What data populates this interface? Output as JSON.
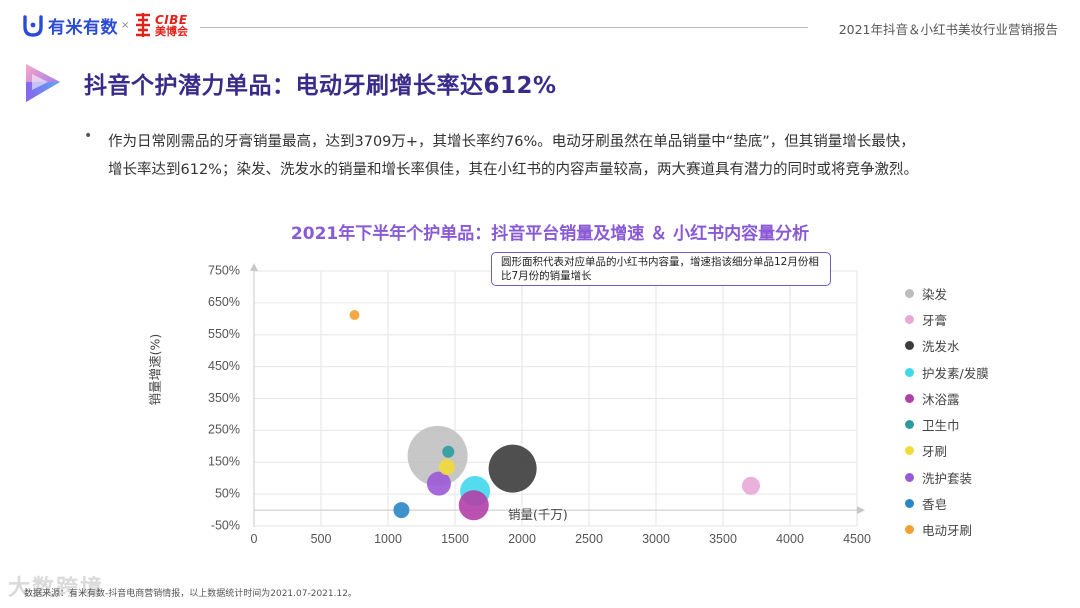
{
  "header": {
    "brand1": "有米有数",
    "separator": "×",
    "brand2_en": "CIBE",
    "brand2_cn": "美博会",
    "report_title": "2021年抖音＆小红书美妆行业营销报告"
  },
  "page": {
    "title": "抖音个护潜力单品：电动牙刷增长率达612%",
    "bullet": "•",
    "paragraph_line1": "作为日常刚需品的牙膏销量最高，达到3709万+，其增长率约76%。电动牙刷虽然在单品销量中“垫底”，但其销量增长最快，",
    "paragraph_line2": "增长率达到612%；染发、洗发水的销量和增长率俱佳，其在小红书的内容声量较高，两大赛道具有潜力的同时或将竞争激烈。"
  },
  "chart_data": {
    "type": "scatter",
    "title": "2021年下半年个护单品：抖音平台销量及增速 ＆ 小红书内容量分析",
    "xlabel": "销量(千万)",
    "ylabel": "销量增速(%)",
    "xlim": [
      0,
      4500
    ],
    "ylim": [
      -50,
      750
    ],
    "x_ticks": [
      0,
      500,
      1000,
      1500,
      2000,
      2500,
      3000,
      3500,
      4000,
      4500
    ],
    "y_ticks": [
      "-50%",
      "50%",
      "150%",
      "250%",
      "350%",
      "450%",
      "550%",
      "650%",
      "750%"
    ],
    "y_tick_values": [
      -50,
      50,
      150,
      250,
      350,
      450,
      550,
      650,
      750
    ],
    "annotation": "圆形面积代表对应单品的小红书内容量，增速指该细分单品12月份相比7月份的销量增长",
    "legend_position": "right",
    "series": [
      {
        "name": "染发",
        "color": "#bdbdbd",
        "x": 1370,
        "y": 170,
        "size": 30
      },
      {
        "name": "牙膏",
        "color": "#e7a8d8",
        "x": 3709,
        "y": 76,
        "size": 9
      },
      {
        "name": "洗发水",
        "color": "#3c3c3c",
        "x": 1930,
        "y": 130,
        "size": 24
      },
      {
        "name": "护发素/发膜",
        "color": "#43d7ec",
        "x": 1650,
        "y": 60,
        "size": 15
      },
      {
        "name": "沐浴露",
        "color": "#b13fa8",
        "x": 1640,
        "y": 15,
        "size": 15
      },
      {
        "name": "卫生巾",
        "color": "#2d9b9e",
        "x": 1450,
        "y": 183,
        "size": 6
      },
      {
        "name": "牙刷",
        "color": "#f1da3a",
        "x": 1440,
        "y": 135,
        "size": 8
      },
      {
        "name": "洗护套装",
        "color": "#9b59d6",
        "x": 1380,
        "y": 83,
        "size": 12
      },
      {
        "name": "香皂",
        "color": "#2b86c7",
        "x": 1100,
        "y": 0,
        "size": 8
      },
      {
        "name": "电动牙刷",
        "color": "#f5a030",
        "x": 750,
        "y": 612,
        "size": 5
      }
    ]
  },
  "footer": {
    "source": "数据来源：有米有数-抖音电商营销情报，以上数据统计时间为2021.07-2021.12。",
    "watermark": "大数跨境"
  }
}
